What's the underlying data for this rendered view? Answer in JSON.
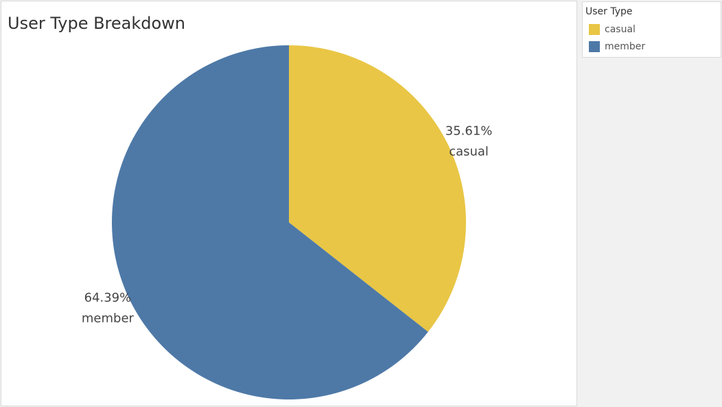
{
  "title": "User Type Breakdown",
  "legend": {
    "title": "User Type",
    "items": [
      {
        "label": "casual",
        "color": "#e9c645"
      },
      {
        "label": "member",
        "color": "#4e79a7"
      }
    ]
  },
  "chart_data": {
    "type": "pie",
    "title": "User Type Breakdown",
    "categories": [
      "casual",
      "member"
    ],
    "values": [
      35.61,
      64.39
    ],
    "unit": "%",
    "data_labels": [
      {
        "value": "35.61%",
        "category": "casual"
      },
      {
        "value": "64.39%",
        "category": "member"
      }
    ],
    "colors": [
      "#e9c645",
      "#4e79a7"
    ],
    "start_angle": "12 o'clock, clockwise",
    "legend_position": "right"
  }
}
